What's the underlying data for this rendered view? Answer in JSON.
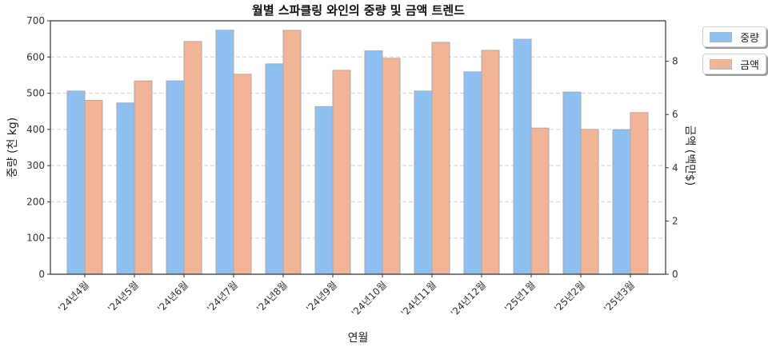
{
  "chart_data": {
    "type": "bar",
    "title": "월별 스파클링 와인의 중량 및 금액 트렌드",
    "xlabel": "연월",
    "ylabel": "중량 (천 kg)",
    "ylabel_right": "금액 (백만$)",
    "categories": [
      "'24년4월",
      "'24년5월",
      "'24년6월",
      "'24년7월",
      "'24년8월",
      "'24년9월",
      "'24년10월",
      "'24년11월",
      "'24년12월",
      "'25년1월",
      "'25년2월",
      "'25년3월"
    ],
    "series": [
      {
        "name": "중량",
        "axis": "left",
        "color": "#8ec1f1",
        "values": [
          506,
          473,
          534,
          674,
          581,
          463,
          617,
          506,
          559,
          649,
          503,
          399
        ]
      },
      {
        "name": "금액",
        "axis": "right",
        "color": "#f2b497",
        "values": [
          6.53,
          7.26,
          8.74,
          7.51,
          9.16,
          7.66,
          8.11,
          8.71,
          8.41,
          5.49,
          5.44,
          6.07
        ]
      }
    ],
    "ylim": [
      0,
      700
    ],
    "ylim_right": [
      0,
      9.52
    ],
    "yticks": [
      0,
      100,
      200,
      300,
      400,
      500,
      600,
      700
    ],
    "yticks_right": [
      0,
      2,
      4,
      6,
      8
    ],
    "grid": true,
    "grid_style": "dashed horizontal (left axis)",
    "legend_position": "upper right, outside plot"
  },
  "legend": {
    "items": [
      {
        "label": "중량",
        "color": "#8ec1f1"
      },
      {
        "label": "금액",
        "color": "#f2b497"
      }
    ]
  }
}
